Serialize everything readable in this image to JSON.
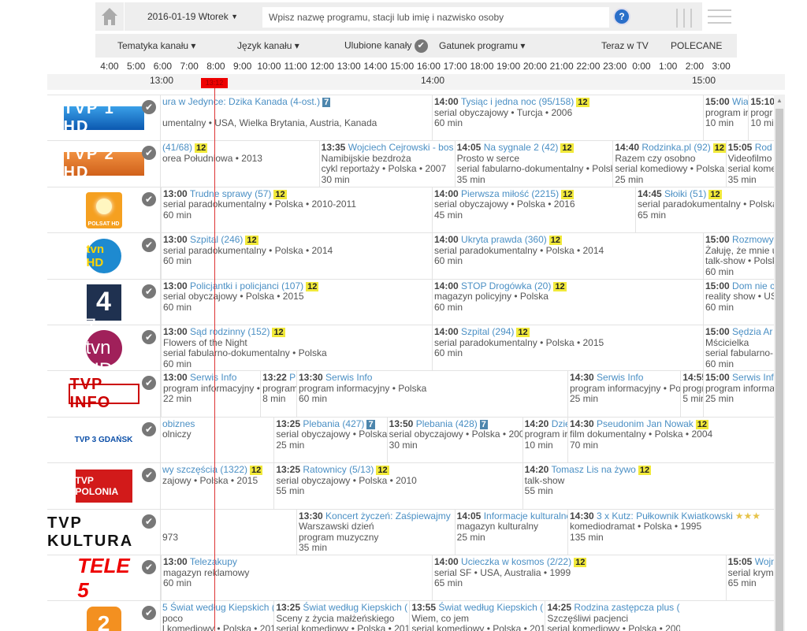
{
  "header": {
    "date": "2016-01-19 Wtorek",
    "search_placeholder": "Wpisz nazwę programu, stacji lub imię i nazwisko osoby",
    "help": "?"
  },
  "filters": {
    "channel_topic": "Tematyka kanału ▾",
    "channel_language": "Język kanału ▾",
    "favorites": "Ulubione kanały",
    "genre": "Gatunek programu ▾",
    "now_on_tv": "Teraz w TV",
    "recommended": "POLECANE"
  },
  "hours": [
    "4:00",
    "5:00",
    "6:00",
    "7:00",
    "8:00",
    "9:00",
    "10:00",
    "11:00",
    "12:00",
    "13:00",
    "14:00",
    "15:00",
    "16:00",
    "17:00",
    "18:00",
    "19:00",
    "20:00",
    "21:00",
    "22:00",
    "23:00",
    "0:00",
    "1:00",
    "2:00",
    "3:00"
  ],
  "timescale": [
    "13:00",
    "14:00",
    "15:00"
  ],
  "now_time": "13:12",
  "colors": {
    "title": "#4a8fc4",
    "badge12": "#f1e93a",
    "badge7": "#4d86ad",
    "now_line": "#dd3333"
  },
  "channels": [
    {
      "logo": "TVP 1 HD",
      "logo_class": "tvp1",
      "programs": [
        {
          "clipped": true,
          "until": "14:00",
          "title": "ura w Jedynce: Dzika Kanada (4-ost.)",
          "badge": "7",
          "lines": [
            "",
            "umentalny • USA, Wielka Brytania, Austria, Kanada"
          ]
        },
        {
          "time": "14:00",
          "title": "Tysiąc i jedna noc (95/158)",
          "badge": "12",
          "lines": [
            "serial obyczajowy • Turcja • 2006",
            "60 min"
          ],
          "duration": 60
        },
        {
          "time": "15:00",
          "title": "Wia",
          "lines": [
            "program ir",
            "10 min"
          ],
          "duration": 10
        },
        {
          "time": "15:10",
          "title": "",
          "lines": [
            "progr",
            "10 mi"
          ],
          "duration": 10
        }
      ]
    },
    {
      "logo": "TVP 2 HD",
      "logo_class": "tvp2",
      "programs": [
        {
          "clipped": true,
          "until": "13:35",
          "title": "(41/68)",
          "badge": "12",
          "lines": [
            "orea Południowa • 2013"
          ]
        },
        {
          "time": "13:35",
          "title": "Wojciech Cejrowski - bos",
          "lines": [
            "Namibijskie bezdroża",
            "cykl reportaży • Polska • 2007",
            "30 min"
          ],
          "duration": 30
        },
        {
          "time": "14:05",
          "title": "Na sygnale 2 (42)",
          "badge": "12",
          "lines": [
            "Prosto w serce",
            "serial fabularno-dokumentalny • Polsk",
            "35 min"
          ],
          "duration": 35
        },
        {
          "time": "14:40",
          "title": "Rodzinka.pl (92)",
          "badge": "12",
          "lines": [
            "Razem czy osobno",
            "serial komediowy • Polska •",
            "25 min"
          ],
          "duration": 25
        },
        {
          "time": "15:05",
          "title": "Rod",
          "lines": [
            "Videofilmo",
            "serial kome",
            "35 min"
          ],
          "duration": 35
        }
      ]
    },
    {
      "logo": "POLSAT HD",
      "logo_class": "polsat",
      "programs": [
        {
          "time": "13:00",
          "title": "Trudne sprawy (57)",
          "badge": "12",
          "lines": [
            "serial paradokumentalny • Polska • 2010-2011",
            "60 min"
          ],
          "duration": 60
        },
        {
          "time": "14:00",
          "title": "Pierwsza miłość (2215)",
          "badge": "12",
          "lines": [
            "serial obyczajowy • Polska • 2016",
            "45 min"
          ],
          "duration": 45
        },
        {
          "time": "14:45",
          "title": "Słoiki (51)",
          "badge": "12",
          "lines": [
            "serial paradokumentalny • Polska",
            "65 min"
          ],
          "duration": 65
        }
      ]
    },
    {
      "logo": "tvn HD",
      "logo_class": "tvn",
      "programs": [
        {
          "time": "13:00",
          "title": "Szpital (246)",
          "badge": "12",
          "lines": [
            "serial paradokumentalny • Polska • 2014",
            "60 min"
          ],
          "duration": 60
        },
        {
          "time": "14:00",
          "title": "Ukryta prawda (360)",
          "badge": "12",
          "lines": [
            "serial paradokumentalny • Polska • 2014",
            "60 min"
          ],
          "duration": 60
        },
        {
          "time": "15:00",
          "title": "Rozmowy",
          "lines": [
            "Żałuję, że mnie u",
            "talk-show • Polsk",
            "60 min"
          ],
          "duration": 60
        }
      ]
    },
    {
      "logo": "4",
      "logo_class": "tv4",
      "programs": [
        {
          "time": "13:00",
          "title": "Policjantki i policjanci (107)",
          "badge": "12",
          "lines": [
            "serial obyczajowy • Polska • 2015",
            "60 min"
          ],
          "duration": 60
        },
        {
          "time": "14:00",
          "title": "STOP Drogówka (20)",
          "badge": "12",
          "lines": [
            "magazyn policyjny • Polska",
            "60 min"
          ],
          "duration": 60
        },
        {
          "time": "15:00",
          "title": "Dom nie c",
          "lines": [
            "reality show • US",
            "60 min"
          ],
          "duration": 60
        }
      ]
    },
    {
      "logo": "7 tvn HD",
      "logo_class": "tvn7",
      "programs": [
        {
          "time": "13:00",
          "title": "Sąd rodzinny (152)",
          "badge": "12",
          "lines": [
            "Flowers of the Night",
            "serial fabularno-dokumentalny • Polska",
            "60 min"
          ],
          "duration": 60
        },
        {
          "time": "14:00",
          "title": "Szpital (294)",
          "badge": "12",
          "lines": [
            "serial paradokumentalny • Polska • 2015",
            "60 min"
          ],
          "duration": 60
        },
        {
          "time": "15:00",
          "title": "Sędzia Ar",
          "lines": [
            "Mścicielka",
            "serial fabularno-",
            "60 min"
          ],
          "duration": 60
        }
      ]
    },
    {
      "logo": "TVP INFO",
      "logo_class": "tvpinfo",
      "programs": [
        {
          "time": "13:00",
          "title": "Serwis Info",
          "lines": [
            "program informacyjny •",
            "22 min"
          ],
          "duration": 22
        },
        {
          "time": "13:22",
          "title": "P",
          "lines": [
            "program",
            "8 min"
          ],
          "duration": 8
        },
        {
          "time": "13:30",
          "title": "Serwis Info",
          "lines": [
            "program informacyjny • Polska",
            "60 min"
          ],
          "duration": 60
        },
        {
          "time": "14:30",
          "title": "Serwis Info",
          "lines": [
            "program informacyjny • Pol",
            "25 min"
          ],
          "duration": 25
        },
        {
          "time": "14:55",
          "title": "",
          "lines": [
            "progr",
            "5 min"
          ],
          "duration": 5
        },
        {
          "time": "15:00",
          "title": "Serwis Info",
          "lines": [
            "program informa",
            "25 min"
          ],
          "duration": 25
        }
      ]
    },
    {
      "logo": "TVP 3 GDAŃSK",
      "logo_class": "tvp3",
      "programs": [
        {
          "clipped": true,
          "until": "13:25",
          "title": "obiznes",
          "lines": [
            "olniczy"
          ]
        },
        {
          "time": "13:25",
          "title": "Plebania (427)",
          "badge": "7",
          "lines": [
            "serial obyczajowy • Polska",
            "25 min"
          ],
          "duration": 25
        },
        {
          "time": "13:50",
          "title": "Plebania (428)",
          "badge": "7",
          "lines": [
            "serial obyczajowy • Polska • 200",
            "30 min"
          ],
          "duration": 30
        },
        {
          "time": "14:20",
          "title": "Dzie",
          "lines": [
            "program ir",
            "10 min"
          ],
          "duration": 10
        },
        {
          "time": "14:30",
          "title": "Pseudonim Jan Nowak",
          "badge": "12",
          "lines": [
            "film dokumentalny • Polska • 2004",
            "70 min"
          ],
          "duration": 70
        }
      ]
    },
    {
      "logo": "TVP POLONIA",
      "logo_class": "polonia",
      "programs": [
        {
          "clipped": true,
          "until": "13:25",
          "title": "wy szczęścia (1322)",
          "badge": "12",
          "lines": [
            "zajowy • Polska • 2015"
          ]
        },
        {
          "time": "13:25",
          "title": "Ratownicy (5/13)",
          "badge": "12",
          "lines": [
            "serial obyczajowy • Polska • 2010",
            "55 min"
          ],
          "duration": 55
        },
        {
          "time": "14:20",
          "title": "Tomasz Lis na żywo",
          "badge": "12",
          "lines": [
            "talk-show",
            "55 min"
          ],
          "duration": 55
        }
      ]
    },
    {
      "logo": "TVP KULTURA",
      "logo_class": "kultura",
      "programs": [
        {
          "clipped": true,
          "until": "13:30",
          "title": "",
          "lines": [
            "",
            "973"
          ]
        },
        {
          "time": "13:30",
          "title": "Koncert życzeń: Zaśpiewajmy",
          "lines": [
            "Warszawski dzień",
            "program muzyczny",
            "35 min"
          ],
          "duration": 35
        },
        {
          "time": "14:05",
          "title": "Informacje kulturalne",
          "lines": [
            "magazyn kulturalny",
            "25 min"
          ],
          "duration": 25
        },
        {
          "time": "14:30",
          "title": "3 x Kutz: Pułkownik Kwiatkowski",
          "stars": "★★★",
          "lines": [
            "komediodramat • Polska • 1995",
            "135 min"
          ],
          "duration": 135
        }
      ]
    },
    {
      "logo": "TELE 5",
      "logo_class": "tele5",
      "programs": [
        {
          "time": "13:00",
          "title": "Telezakupy",
          "lines": [
            "magazyn reklamowy",
            "60 min"
          ],
          "duration": 60
        },
        {
          "time": "14:00",
          "title": "Ucieczka w kosmos (2/22)",
          "badge": "12",
          "lines": [
            "serial SF • USA, Australia • 1999",
            "65 min"
          ],
          "duration": 65
        },
        {
          "time": "15:05",
          "title": "Wojn",
          "lines": [
            "serial krym",
            "65 min"
          ],
          "duration": 65
        }
      ]
    },
    {
      "logo": "2",
      "logo_class": "puls2",
      "programs": [
        {
          "clipped": true,
          "until": "13:25",
          "title": "5 Świat według Kiepskich (",
          "lines": [
            "poco",
            "l komediowy • Polska • 201"
          ]
        },
        {
          "time": "13:25",
          "title": "Świat według Kiepskich (",
          "lines": [
            "Sceny z życia małżeńskiego",
            "serial komediowy • Polska • 201"
          ],
          "duration": 30
        },
        {
          "time": "13:55",
          "title": "Świat według Kiepskich (",
          "lines": [
            "Wiem, co jem",
            "serial komediowy • Polska • 201"
          ],
          "duration": 30
        },
        {
          "time": "14:25",
          "title": "Rodzina zastępcza plus (307)",
          "badge": "☺",
          "lines": [
            "Szczęśliwi pacjenci",
            "serial komediowy • Polska • 2009"
          ],
          "duration": 30
        }
      ]
    }
  ]
}
